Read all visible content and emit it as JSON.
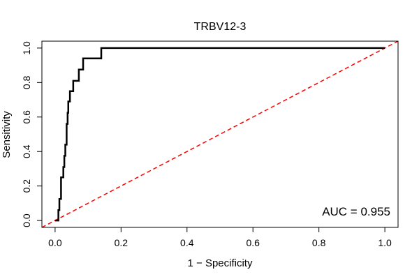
{
  "chart_data": {
    "type": "line",
    "title": "TRBV12-3",
    "xlabel": "1 − Specificity",
    "ylabel": "Sensitivity",
    "xlim": [
      -0.04,
      1.04
    ],
    "ylim": [
      -0.04,
      1.04
    ],
    "xticks": [
      0.0,
      0.2,
      0.4,
      0.6,
      0.8,
      1.0
    ],
    "yticks": [
      0.0,
      0.2,
      0.4,
      0.6,
      0.8,
      1.0
    ],
    "xtick_labels": [
      "0.0",
      "0.2",
      "0.4",
      "0.6",
      "0.8",
      "1.0"
    ],
    "ytick_labels": [
      "0.0",
      "0.2",
      "0.4",
      "0.6",
      "0.8",
      "1.0"
    ],
    "grid": false,
    "series": [
      {
        "color": "#000000",
        "style": "solid",
        "x": [
          0.0,
          0.01,
          0.01,
          0.013,
          0.013,
          0.018,
          0.018,
          0.025,
          0.025,
          0.028,
          0.028,
          0.031,
          0.031,
          0.035,
          0.035,
          0.038,
          0.038,
          0.04,
          0.04,
          0.045,
          0.045,
          0.055,
          0.055,
          0.072,
          0.072,
          0.085,
          0.085,
          0.14,
          0.14,
          1.0
        ],
        "y": [
          0.0,
          0.0,
          0.06,
          0.06,
          0.125,
          0.125,
          0.25,
          0.25,
          0.31,
          0.31,
          0.375,
          0.375,
          0.44,
          0.44,
          0.56,
          0.56,
          0.625,
          0.625,
          0.69,
          0.69,
          0.75,
          0.75,
          0.81,
          0.81,
          0.875,
          0.875,
          0.94,
          0.94,
          1.0,
          1.0
        ]
      },
      {
        "color": "#ff0000",
        "style": "dashed",
        "x": [
          -0.04,
          1.04
        ],
        "y": [
          -0.04,
          1.04
        ]
      }
    ],
    "annotations": [
      {
        "text": "AUC = 0.955"
      }
    ]
  }
}
